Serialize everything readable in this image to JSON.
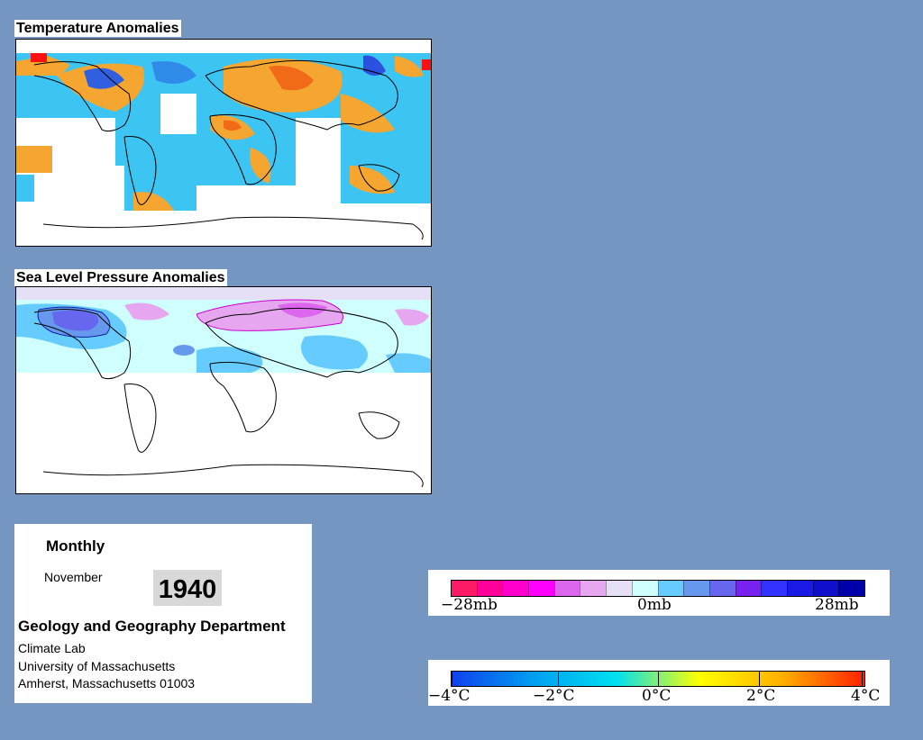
{
  "panels": {
    "temperature": {
      "title": "Temperature Anomalies"
    },
    "pressure": {
      "title": "Sea Level Pressure Anomalies"
    }
  },
  "info": {
    "period": "Monthly",
    "month": "November",
    "year": "1940",
    "department": "Geology and Geography Department",
    "lab": "Climate Lab",
    "university": "University of Massachusetts",
    "address": "Amherst, Massachusetts 01003"
  },
  "pressure_legend": {
    "labels": [
      "−28mb",
      "0mb",
      "28mb"
    ],
    "colors": [
      "#ff1a66",
      "#ff0099",
      "#ff00cc",
      "#ff00ff",
      "#dd66ee",
      "#e6a6f0",
      "#e6e0f6",
      "#d0ffff",
      "#66ccff",
      "#6699ee",
      "#6666ee",
      "#7722ee",
      "#3333ff",
      "#1a1ae6",
      "#1010cc",
      "#0000aa"
    ]
  },
  "temperature_legend": {
    "labels": [
      "−4°C",
      "−2°C",
      "0°C",
      "2°C",
      "4°C"
    ],
    "gradient": [
      "#1040ee",
      "#00a0f0",
      "#00e0f0",
      "#ffff00",
      "#ffb000",
      "#ff2000"
    ]
  },
  "colors": {
    "background": "#7596c0",
    "warm": "#f5a030",
    "cool": "#38c0f0",
    "cold": "#3060e0",
    "hot": "#ff1010"
  }
}
